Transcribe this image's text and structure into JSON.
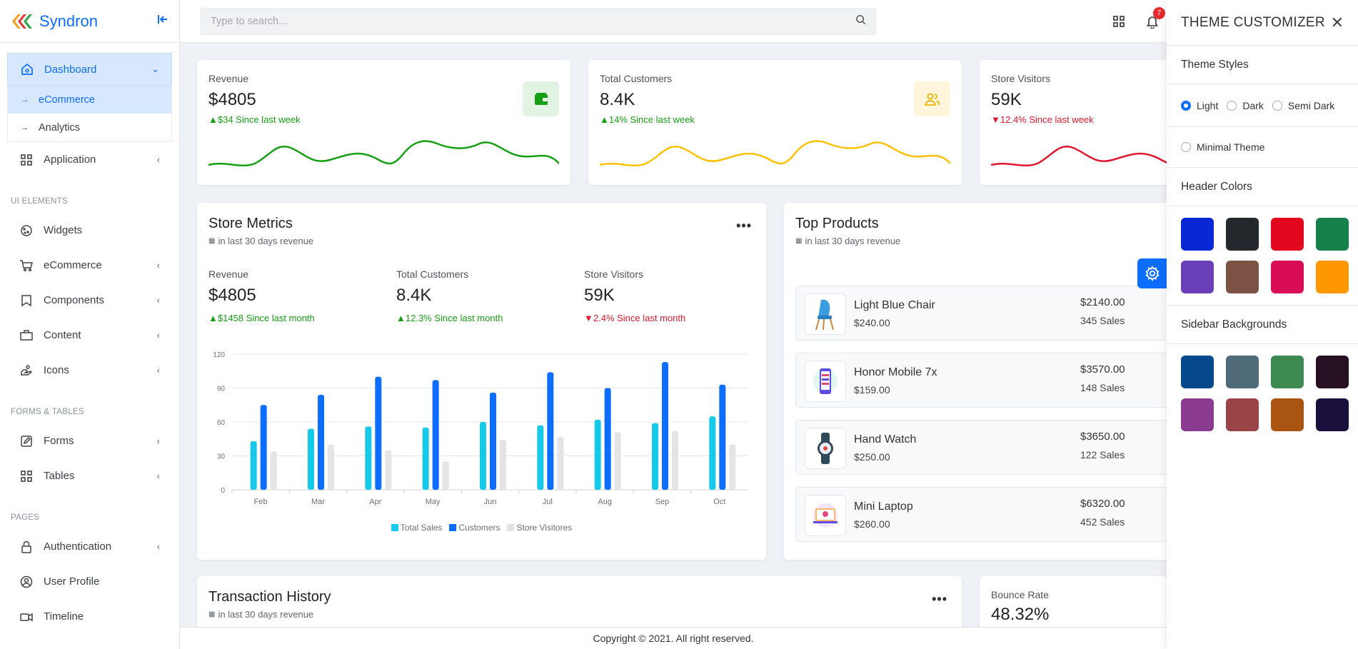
{
  "brand": {
    "name": "Syndron"
  },
  "sidebar": {
    "dashboard": "Dashboard",
    "sub": [
      "eCommerce",
      "Analytics"
    ],
    "application": "Application",
    "section_ui": "UI ELEMENTS",
    "widgets": "Widgets",
    "ecommerce": "eCommerce",
    "components": "Components",
    "content": "Content",
    "icons": "Icons",
    "section_forms": "FORMS & TABLES",
    "forms": "Forms",
    "tables": "Tables",
    "section_pages": "PAGES",
    "authentication": "Authentication",
    "user_profile": "User Profile",
    "timeline": "Timeline"
  },
  "search": {
    "placeholder": "Type to search..."
  },
  "notifications": {
    "count": "7"
  },
  "stats": [
    {
      "title": "Revenue",
      "value": "$4805",
      "change": "▲$34 Since last week",
      "trend": "up",
      "color": "#15a013",
      "iconbg": "#e3f3e3"
    },
    {
      "title": "Total Customers",
      "value": "8.4K",
      "change": "▲14% Since last week",
      "trend": "up",
      "color": "#ffc107",
      "iconbg": "#fff5dd"
    },
    {
      "title": "Store Visitors",
      "value": "59K",
      "change": "▼12.4% Since last week",
      "trend": "down",
      "color": "#e1182d",
      "iconbg": "#fde8ea"
    }
  ],
  "store_metrics": {
    "title": "Store Metrics",
    "subtitle": "in last 30 days revenue",
    "metrics": [
      {
        "title": "Revenue",
        "value": "$4805",
        "change": "▲$1458 Since last month",
        "trend": "up"
      },
      {
        "title": "Total Customers",
        "value": "8.4K",
        "change": "▲12.3% Since last month",
        "trend": "up"
      },
      {
        "title": "Store Visitors",
        "value": "59K",
        "change": "▼2.4% Since last month",
        "trend": "down"
      }
    ]
  },
  "chart_data": {
    "type": "bar",
    "categories": [
      "Feb",
      "Mar",
      "Apr",
      "May",
      "Jun",
      "Jul",
      "Aug",
      "Sep",
      "Oct"
    ],
    "series": [
      {
        "name": "Total Sales",
        "color": "#17c9e8",
        "values": [
          43,
          54,
          56,
          55,
          60,
          57,
          62,
          59,
          65
        ]
      },
      {
        "name": "Customers",
        "color": "#0d6efd",
        "values": [
          75,
          84,
          100,
          97,
          86,
          104,
          90,
          113,
          93
        ]
      },
      {
        "name": "Store Visitores",
        "color": "#e4e4e4",
        "values": [
          34,
          40,
          35,
          25,
          44,
          47,
          51,
          52,
          40
        ]
      }
    ],
    "ylim": [
      0,
      120
    ],
    "yticks": [
      0,
      30,
      60,
      90,
      120
    ],
    "grid": true,
    "legend": "bottom"
  },
  "top_products": {
    "title": "Top Products",
    "subtitle": "in last 30 days revenue",
    "items": [
      {
        "name": "Light Blue Chair",
        "price": "$240.00",
        "amount": "$2140.00",
        "sales": "345 Sales"
      },
      {
        "name": "Honor Mobile 7x",
        "price": "$159.00",
        "amount": "$3570.00",
        "sales": "148 Sales"
      },
      {
        "name": "Hand Watch",
        "price": "$250.00",
        "amount": "$3650.00",
        "sales": "122 Sales"
      },
      {
        "name": "Mini Laptop",
        "price": "$260.00",
        "amount": "$6320.00",
        "sales": "452 Sales"
      }
    ]
  },
  "transaction": {
    "title": "Transaction History",
    "subtitle": "in last 30 days revenue"
  },
  "bounce": {
    "title": "Bounce Rate",
    "value": "48.32%"
  },
  "footer": {
    "text": "Copyright © 2021. All right reserved."
  },
  "customizer": {
    "title": "THEME CUSTOMIZER",
    "theme_styles": "Theme Styles",
    "options": [
      "Light",
      "Dark",
      "Semi Dark"
    ],
    "minimal": "Minimal Theme",
    "header_colors": "Header Colors",
    "header_swatches": [
      "#0a27d6",
      "#23282d",
      "#e2071f",
      "#15804a",
      "#6a3fb8",
      "#7b5244",
      "#d80d56",
      "#ff9800"
    ],
    "sidebar_bgs": "Sidebar Backgrounds",
    "sidebar_swatches": [
      "#05488c",
      "#4f6a78",
      "#3e8a52",
      "#261021",
      "#8a3a8f",
      "#9a4448",
      "#aa5412",
      "#1b0f3d"
    ]
  }
}
